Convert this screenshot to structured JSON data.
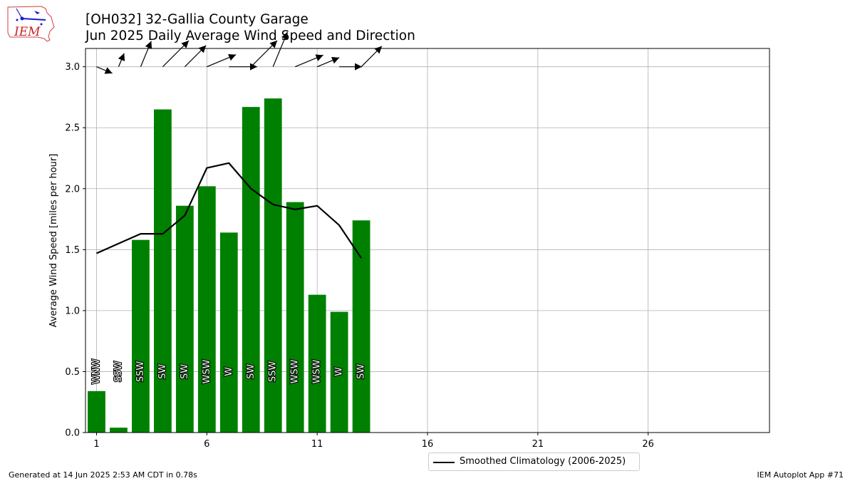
{
  "logo": {
    "text": "IEM",
    "icon": "iem-logo-icon"
  },
  "title": {
    "line1": "[OH032] 32-Gallia County Garage",
    "line2": "Jun 2025 Daily Average Wind Speed and Direction"
  },
  "footer": {
    "left": "Generated at 14 Jun 2025 2:53 AM CDT in 0.78s",
    "right": "IEM Autoplot App #71"
  },
  "legend": {
    "label": "Smoothed Climatology (2006-2025)"
  },
  "colors": {
    "bar": "#008000",
    "climo": "#000000",
    "grid": "#b0b0b0",
    "barb": "#000000"
  },
  "chart_data": {
    "type": "bar",
    "ylabel": "Average Wind Speed [miles per hour]",
    "xlim": [
      0.5,
      31.5
    ],
    "ylim": [
      0,
      3.15
    ],
    "xticks": [
      1,
      6,
      11,
      16,
      21,
      26
    ],
    "yticks": [
      0.0,
      0.5,
      1.0,
      1.5,
      2.0,
      2.5,
      3.0
    ],
    "grid": true,
    "legend_position": "bottom-center",
    "days": [
      1,
      2,
      3,
      4,
      5,
      6,
      7,
      8,
      9,
      10,
      11,
      12,
      13
    ],
    "series": [
      {
        "name": "Daily Average Wind Speed",
        "type": "bar",
        "values": [
          0.34,
          0.04,
          1.58,
          2.65,
          1.86,
          2.02,
          1.64,
          2.67,
          2.74,
          1.89,
          1.13,
          0.99,
          1.74
        ],
        "directions": [
          "WNW",
          "SSW",
          "SSW",
          "SW",
          "SW",
          "WSW",
          "W",
          "SW",
          "SSW",
          "WSW",
          "WSW",
          "W",
          "SW"
        ]
      },
      {
        "name": "Smoothed Climatology (2006-2025)",
        "type": "line",
        "values": [
          1.47,
          1.55,
          1.63,
          1.63,
          1.78,
          2.17,
          2.21,
          2.0,
          1.87,
          1.83,
          1.86,
          1.7,
          1.43
        ]
      }
    ]
  }
}
